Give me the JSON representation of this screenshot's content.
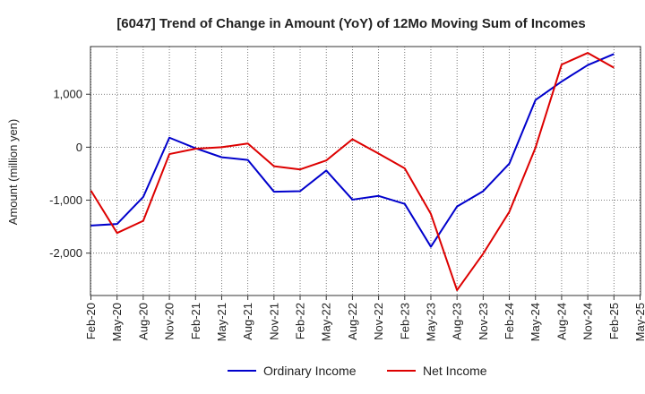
{
  "chart_data": {
    "type": "line",
    "title": "[6047]  Trend of Change in Amount (YoY) of 12Mo Moving Sum of Incomes",
    "xlabel": "",
    "ylabel": "Amount (million yen)",
    "x": [
      "Feb-20",
      "May-20",
      "Aug-20",
      "Nov-20",
      "Feb-21",
      "May-21",
      "Aug-21",
      "Nov-21",
      "Feb-22",
      "May-22",
      "Aug-22",
      "Nov-22",
      "Feb-23",
      "May-23",
      "Aug-23",
      "Nov-23",
      "Feb-24",
      "May-24",
      "Aug-24",
      "Nov-24",
      "Feb-25",
      "May-25"
    ],
    "ylim": [
      -2800,
      1900
    ],
    "yticks": [
      1000,
      0,
      -1000,
      -2000
    ],
    "ytick_labels": [
      "1,000",
      "0",
      "-1,000",
      "-2,000"
    ],
    "grid": true,
    "legend_position": "bottom",
    "series": [
      {
        "name": "Ordinary Income",
        "color": "#0000cc",
        "values": [
          -1480,
          -1450,
          -940,
          180,
          -20,
          -190,
          -240,
          -840,
          -830,
          -440,
          -990,
          -920,
          -1070,
          -1880,
          -1120,
          -830,
          -310,
          890,
          1240,
          1550,
          1760,
          null
        ]
      },
      {
        "name": "Net Income",
        "color": "#dd0000",
        "values": [
          -820,
          -1620,
          -1390,
          -130,
          -30,
          0,
          70,
          -360,
          -420,
          -250,
          150,
          -120,
          -400,
          -1260,
          -2700,
          -2010,
          -1220,
          -10,
          1560,
          1780,
          1500,
          null
        ]
      }
    ]
  }
}
